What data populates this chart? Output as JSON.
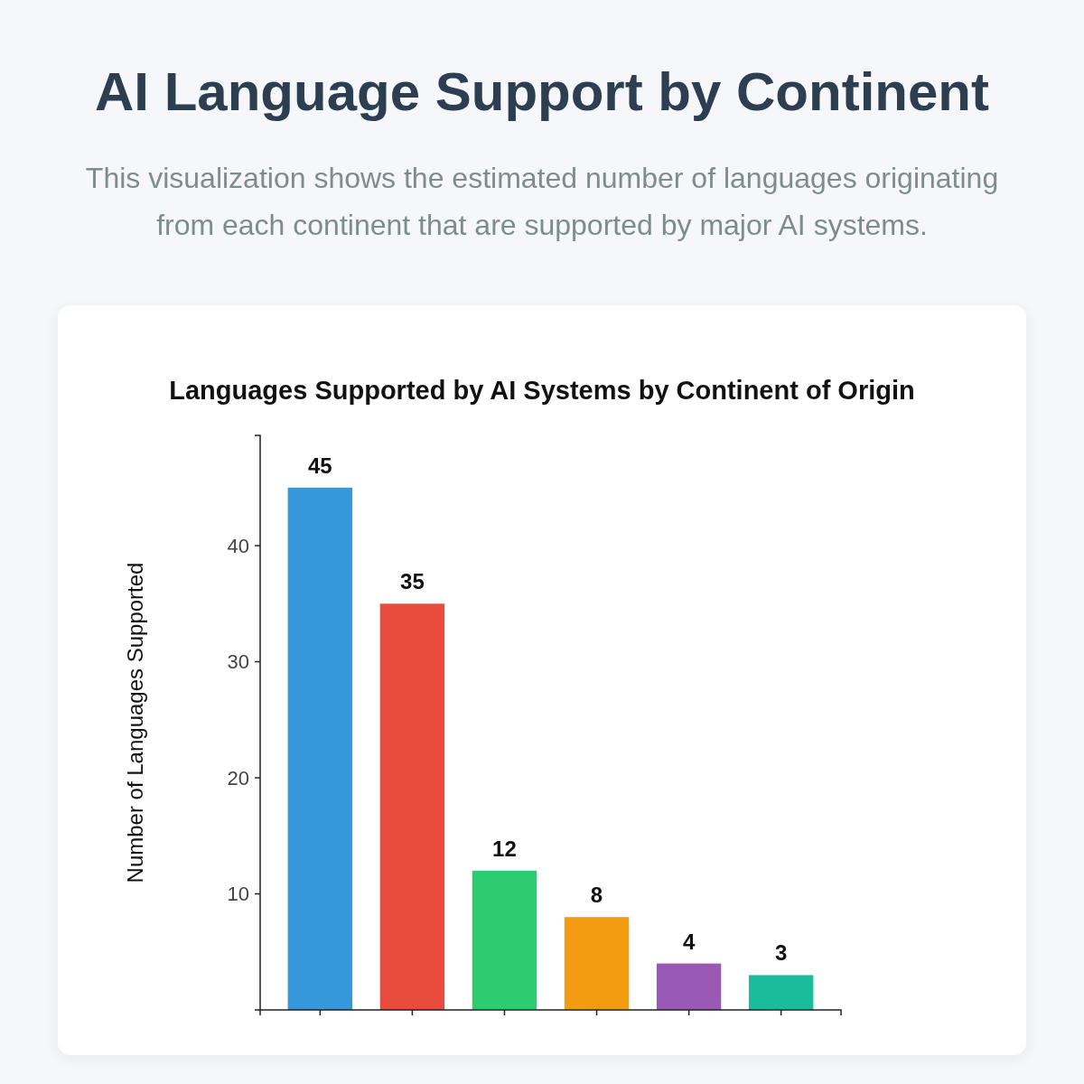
{
  "chart_data": {
    "type": "bar",
    "title": "AI Language Support by Continent",
    "subtitle": "This visualization shows the estimated number of languages originating from each continent that are supported by major AI systems.",
    "annotations": [
      "Languages Supported by AI Systems by Continent of Origin"
    ],
    "ylabel": "Number of Languages Supported",
    "categories": [
      null,
      null,
      null,
      null,
      null,
      null
    ],
    "values": [
      45,
      35,
      12,
      8,
      4,
      3
    ],
    "colors": [
      "#3498db",
      "#e74c3c",
      "#2ecc71",
      "#f39c12",
      "#9b59b6",
      "#1abc9c"
    ],
    "ylim": [
      0,
      49.5
    ],
    "yticks": [
      10,
      20,
      30,
      40
    ],
    "data_labels": true
  }
}
